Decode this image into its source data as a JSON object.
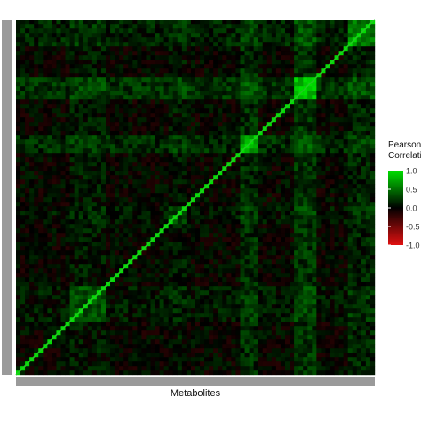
{
  "chart_data": {
    "type": "heatmap",
    "title": "",
    "xlabel": "Metabolites",
    "ylabel": "",
    "matrix_kind": "symmetric correlation matrix of metabolites, diagonal = 1",
    "scale": {
      "min": -1,
      "max": 1,
      "colors": {
        "low": "#e01010",
        "mid": "#000000",
        "high": "#00e000"
      }
    },
    "diagonal_value": 1.0,
    "block_clusters": [
      {
        "from": 0.62,
        "to": 0.68,
        "value": 0.72
      },
      {
        "from": 0.78,
        "to": 0.84,
        "value": 0.85
      },
      {
        "from": 0.15,
        "to": 0.25,
        "value": 0.35
      },
      {
        "from": 0.42,
        "to": 0.48,
        "value": 0.3
      },
      {
        "from": 0.92,
        "to": 1.0,
        "value": 0.55
      }
    ],
    "legend": {
      "title_lines": [
        "Pearson",
        "Correlation"
      ],
      "ticks": [
        "1.0",
        "0.5",
        "0.0",
        "-0.5",
        "-1.0"
      ],
      "tick_values": [
        1.0,
        0.5,
        0.0,
        -0.5,
        -1.0
      ],
      "placement": "right"
    },
    "grid": false
  }
}
